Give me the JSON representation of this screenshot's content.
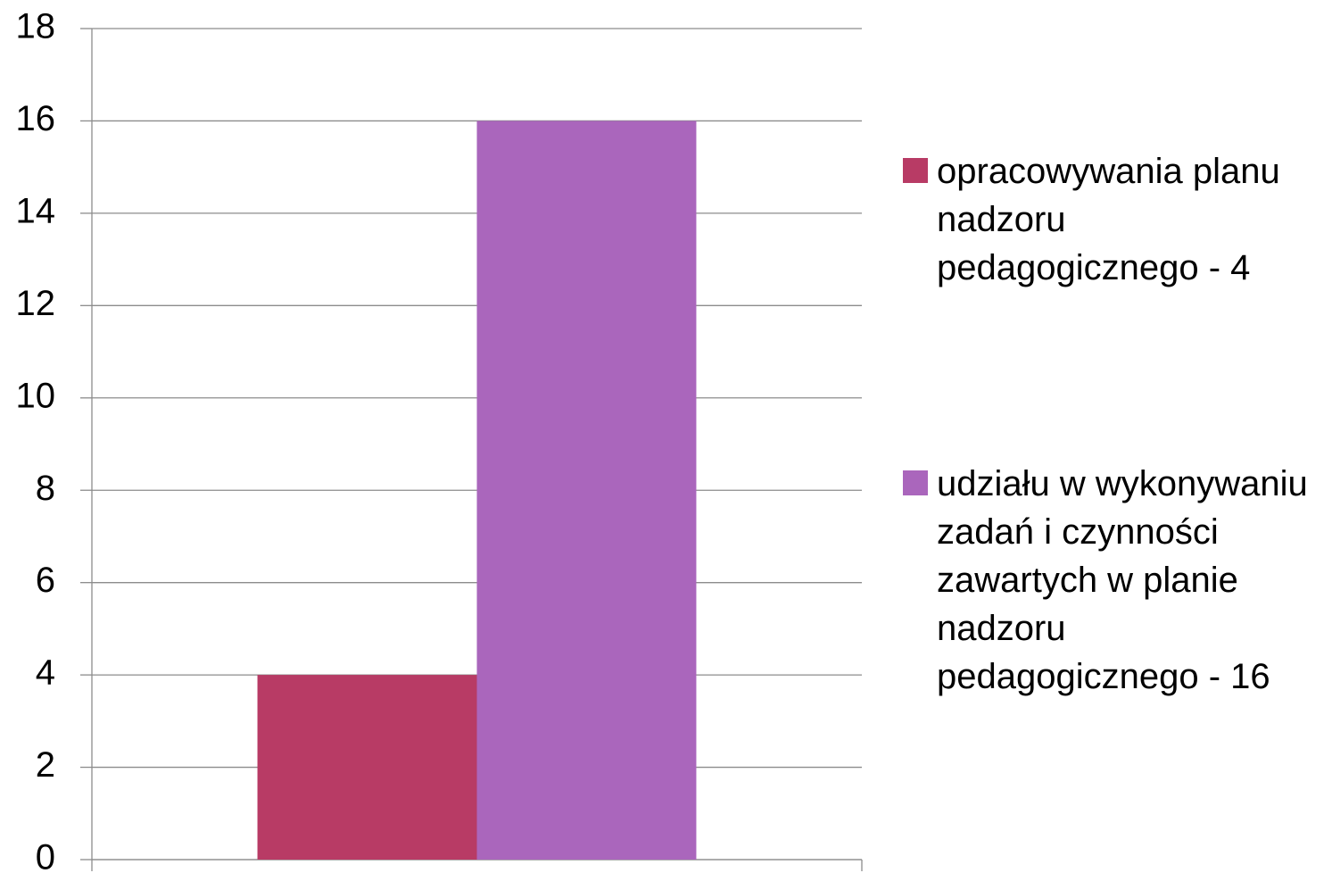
{
  "chart_data": {
    "type": "bar",
    "categories": [
      null
    ],
    "series": [
      {
        "name": "opracowywania planu nadzoru pedagogicznego - 4",
        "color": "#b83b65",
        "values": [
          4
        ]
      },
      {
        "name": "udziału w wykonywaniu zadań i czynności zawartych w planie nadzoru pedagogicznego - 16",
        "color": "#aa66bc",
        "values": [
          16
        ]
      }
    ],
    "ylim": [
      0,
      18
    ],
    "yticks": [
      0,
      2,
      4,
      6,
      8,
      10,
      12,
      14,
      16,
      18
    ],
    "grid": true,
    "legend": "right"
  }
}
